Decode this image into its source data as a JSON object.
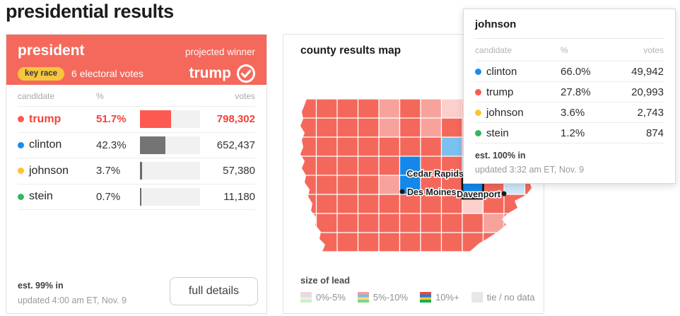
{
  "page": {
    "title": "presidential results"
  },
  "race_card": {
    "title": "president",
    "projected_winner_label": "projected winner",
    "key_race_label": "key race",
    "electoral_votes": "6 electoral votes",
    "winner_name": "trump",
    "table": {
      "headers": {
        "candidate": "candidate",
        "pct": "%",
        "votes": "votes"
      },
      "rows": [
        {
          "name": "trump",
          "pct": "51.7%",
          "votes": "798,302",
          "color": "#f2423a",
          "bar_color": "#fc5a50",
          "winner": true
        },
        {
          "name": "clinton",
          "pct": "42.3%",
          "votes": "652,437",
          "color": "#1b8ceb",
          "bar_color": "#747474",
          "winner": false
        },
        {
          "name": "johnson",
          "pct": "3.7%",
          "votes": "57,380",
          "color": "#fdc42c",
          "bar_color": "#6b6b6b",
          "winner": false
        },
        {
          "name": "stein",
          "pct": "0.7%",
          "votes": "11,180",
          "color": "#34b85c",
          "bar_color": "#6b6b6b",
          "winner": false
        }
      ]
    },
    "est_in": "est. 99% in",
    "updated": "updated 4:00 am ET, Nov. 9",
    "full_details_label": "full details"
  },
  "map_card": {
    "title": "county results map",
    "legend": {
      "title": "size of lead",
      "items": [
        {
          "label": "0%-5%",
          "stripes": [
            "#fbd3d4",
            "#cde3f9",
            "#faf0c0",
            "#cdecd2"
          ]
        },
        {
          "label": "5%-10%",
          "stripes": [
            "#f79d95",
            "#7db9ef",
            "#f8dd67",
            "#7dd492"
          ]
        },
        {
          "label": "10%+",
          "stripes": [
            "#f3443a",
            "#1a7ee0",
            "#fdc42c",
            "#22ab4e"
          ]
        },
        {
          "label": "tie / no data",
          "stripes": [
            "#e7e7e7"
          ]
        }
      ]
    },
    "map": {
      "palette": {
        "r": "#f4685c",
        "q": "#f7a39c",
        "o": "#fbd0cc",
        "B": "#1487ea",
        "b": "#7cc0f2",
        "c": "#cfe7fb",
        "H": "#1487ea"
      },
      "grid": [
        "rrrrqrqorrro",
        "rrrrqrqrrroq",
        "rrrrrrrbrrrr",
        "rrrrrBrrbrqo",
        "rrrrqBrrHrcr",
        "rrrrrrrrorrr",
        "rrrrrrrrrqrr",
        "rrrrrrrrrrrr"
      ],
      "highlight_stroke": "#111111",
      "cities": [
        {
          "name": "Cedar Rapids",
          "dot": [
            243,
            106
          ],
          "label": [
            238,
            110
          ],
          "anchor": "end"
        },
        {
          "name": "Des Moines",
          "dot": [
            151,
            131
          ],
          "label": [
            158,
            136
          ],
          "anchor": "start"
        },
        {
          "name": "Davenport",
          "dot": [
            295,
            134
          ],
          "label": [
            290,
            139
          ],
          "anchor": "end"
        }
      ]
    }
  },
  "tooltip": {
    "title": "johnson",
    "headers": {
      "candidate": "candidate",
      "pct": "%",
      "votes": "votes"
    },
    "rows": [
      {
        "name": "clinton",
        "pct": "66.0%",
        "votes": "49,942",
        "color": "#1b8ceb"
      },
      {
        "name": "trump",
        "pct": "27.8%",
        "votes": "20,993",
        "color": "#fc5a50"
      },
      {
        "name": "johnson",
        "pct": "3.6%",
        "votes": "2,743",
        "color": "#fdc42c"
      },
      {
        "name": "stein",
        "pct": "1.2%",
        "votes": "874",
        "color": "#34b85c"
      }
    ],
    "est_in": "est. 100% in",
    "updated": "updated 3:32 am ET, Nov. 9"
  }
}
